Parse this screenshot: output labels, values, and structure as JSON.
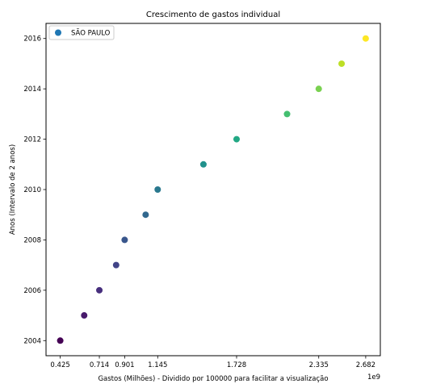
{
  "chart_data": {
    "type": "scatter",
    "title": "Crescimento de gastos individual",
    "xlabel": "Gastos (Milhões) - Dividido por 100000 para facilitar a visualização",
    "ylabel": "Anos (Intervalo de 2 anos)",
    "x_offset_text": "1e9",
    "x_ticks": [
      0.425,
      0.714,
      0.901,
      1.145,
      1.728,
      2.335,
      2.682
    ],
    "x_tick_labels": [
      "0.425",
      "0.714",
      "0.901",
      "1.145",
      "1.728",
      "2.335",
      "2.682"
    ],
    "y_ticks": [
      2004,
      2006,
      2008,
      2010,
      2012,
      2014,
      2016
    ],
    "y_tick_labels": [
      "2004",
      "2006",
      "2008",
      "2010",
      "2012",
      "2014",
      "2016"
    ],
    "xlim": [
      0.32,
      2.79
    ],
    "ylim": [
      2003.4,
      2016.6
    ],
    "grid": false,
    "legend": {
      "position": "top-left",
      "entries": [
        {
          "label": "SÃO PAULO",
          "color": "#1f77b4"
        }
      ]
    },
    "series": [
      {
        "name": "SÃO PAULO",
        "colormap": "viridis",
        "points": [
          {
            "x": 0.425,
            "y": 2004,
            "color": "#440154"
          },
          {
            "x": 0.602,
            "y": 2005,
            "color": "#481a6c"
          },
          {
            "x": 0.714,
            "y": 2006,
            "color": "#472f7d"
          },
          {
            "x": 0.838,
            "y": 2007,
            "color": "#414487"
          },
          {
            "x": 0.901,
            "y": 2008,
            "color": "#39568c"
          },
          {
            "x": 1.056,
            "y": 2009,
            "color": "#31688e"
          },
          {
            "x": 1.145,
            "y": 2010,
            "color": "#2a788e"
          },
          {
            "x": 1.483,
            "y": 2011,
            "color": "#21918c"
          },
          {
            "x": 1.728,
            "y": 2012,
            "color": "#22a884"
          },
          {
            "x": 2.101,
            "y": 2013,
            "color": "#44bf70"
          },
          {
            "x": 2.335,
            "y": 2014,
            "color": "#7ad151"
          },
          {
            "x": 2.504,
            "y": 2015,
            "color": "#bddf26"
          },
          {
            "x": 2.682,
            "y": 2016,
            "color": "#fde725"
          }
        ]
      }
    ]
  }
}
